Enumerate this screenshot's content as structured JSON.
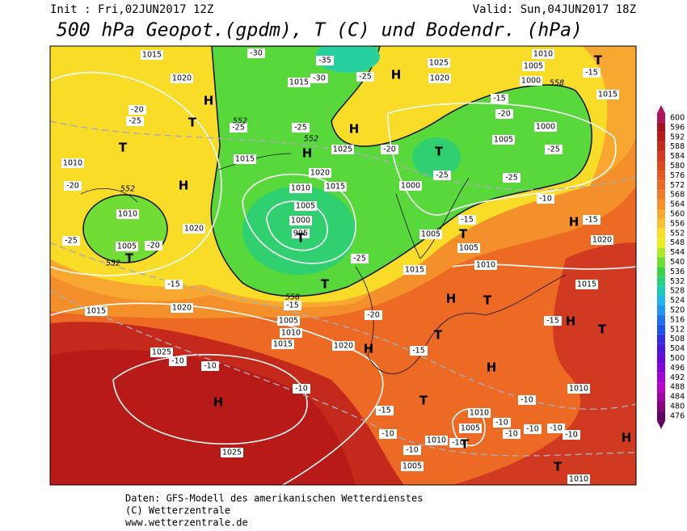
{
  "header": {
    "init": "Init : Fri,02JUN2017 12Z",
    "valid": "Valid: Sun,04JUN2017 18Z",
    "title": "500 hPa Geopot.(gpdm), T (C) und Bodendr. (hPa)"
  },
  "colorbar": {
    "levels": [
      600,
      596,
      592,
      588,
      584,
      580,
      576,
      572,
      568,
      564,
      560,
      556,
      552,
      548,
      544,
      540,
      536,
      532,
      528,
      524,
      520,
      516,
      512,
      508,
      504,
      500,
      496,
      492,
      488,
      484,
      480,
      476
    ],
    "colors": [
      "#b0145a",
      "#a81020",
      "#b81a18",
      "#c42a1c",
      "#d03a20",
      "#dc4a20",
      "#e45a22",
      "#ec6a24",
      "#f07c28",
      "#f4902c",
      "#f8a830",
      "#f8c030",
      "#f8dc28",
      "#e8f020",
      "#b0e828",
      "#70dc34",
      "#40d048",
      "#28d080",
      "#20c8b8",
      "#20b4e8",
      "#2094f4",
      "#2070f0",
      "#2050ec",
      "#3030e4",
      "#4818e0",
      "#6408dc",
      "#8004dc",
      "#a000d8",
      "#b800c8",
      "#a000a0",
      "#800080",
      "#600060"
    ]
  },
  "map": {
    "centers": [
      "H",
      "H",
      "H",
      "H",
      "H",
      "H",
      "H",
      "H",
      "H",
      "H",
      "H",
      "H",
      "T",
      "T",
      "T",
      "T",
      "T",
      "T",
      "T",
      "T",
      "T",
      "T",
      "T",
      "T",
      "T",
      "T"
    ],
    "isobars": [
      "1015",
      "1020",
      "1015",
      "1025",
      "1020",
      "1005",
      "1000",
      "1010",
      "1015",
      "1000",
      "1005",
      "1025",
      "1020",
      "1015",
      "1010",
      "1005",
      "1000",
      "995",
      "1010",
      "1005",
      "1020",
      "1010",
      "1015",
      "1000",
      "1005",
      "1005",
      "1010",
      "1015",
      "1020",
      "1015",
      "1015",
      "1020",
      "1005",
      "1010",
      "1015",
      "1020",
      "1025",
      "1025",
      "1010",
      "1005",
      "1005",
      "1010",
      "1010",
      "1010"
    ],
    "temperatures": [
      "-30",
      "-35",
      "-30",
      "-25",
      "-25",
      "-25",
      "-20",
      "-25",
      "-20",
      "-25",
      "-20",
      "-15",
      "-15",
      "-25",
      "-20",
      "-25",
      "-25",
      "-25",
      "-20",
      "-15",
      "-15",
      "-10",
      "-15",
      "-15",
      "-20",
      "-15",
      "-10",
      "-10",
      "-10",
      "-15",
      "-10",
      "-10",
      "-10",
      "-10",
      "-10",
      "-10",
      "-10",
      "-10",
      "-15",
      "-10"
    ],
    "heights": [
      "552",
      "552",
      "552",
      "552",
      "558",
      "558"
    ]
  },
  "footer": {
    "source": "Daten: GFS-Modell des amerikanischen Wetterdienstes",
    "copyright": "(C) Wetterzentrale",
    "url": "www.wetterzentrale.de"
  }
}
